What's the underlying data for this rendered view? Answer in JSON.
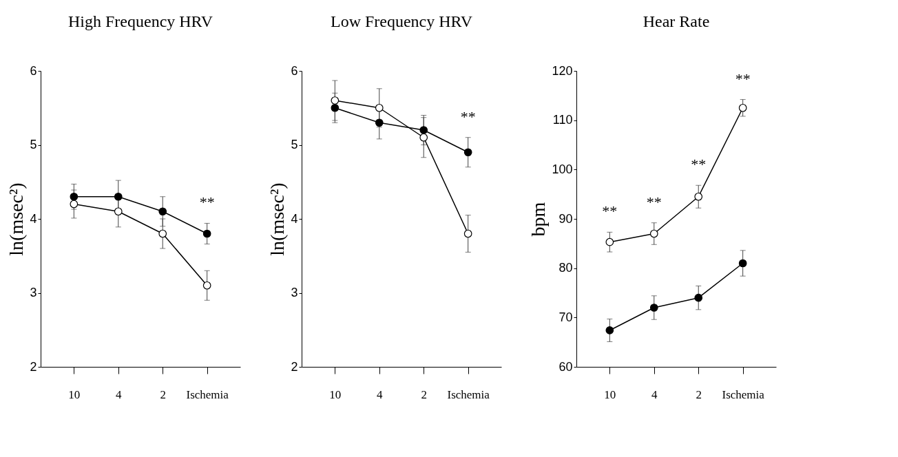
{
  "chart_data": [
    {
      "type": "line",
      "title": "High Frequency HRV",
      "ylabel": "ln(msec²)",
      "categories": [
        "10",
        "4",
        "2",
        "Ischemia"
      ],
      "ylim": [
        2,
        6
      ],
      "yticks": [
        2,
        3,
        4,
        5,
        6
      ],
      "grid": false,
      "marker": "circle",
      "series": [
        {
          "color": "#000000",
          "values": [
            4.3,
            4.3,
            4.1,
            3.8
          ],
          "errors": [
            0.17,
            0.22,
            0.2,
            0.14
          ]
        },
        {
          "color": "#ffffff",
          "values": [
            4.2,
            4.1,
            3.8,
            3.1
          ],
          "errors": [
            0.19,
            0.21,
            0.2,
            0.2
          ]
        }
      ],
      "annotations": [
        "**"
      ]
    },
    {
      "type": "line",
      "title": "Low Frequency HRV",
      "ylabel": "ln(msec²)",
      "categories": [
        "10",
        "4",
        "2",
        "Ischemia"
      ],
      "ylim": [
        2,
        6
      ],
      "yticks": [
        2,
        3,
        4,
        5,
        6
      ],
      "grid": false,
      "marker": "circle",
      "series": [
        {
          "color": "#000000",
          "values": [
            5.5,
            5.3,
            5.2,
            4.9
          ],
          "errors": [
            0.2,
            0.22,
            0.2,
            0.2
          ]
        },
        {
          "color": "#ffffff",
          "values": [
            5.6,
            5.5,
            5.1,
            3.8
          ],
          "errors": [
            0.27,
            0.26,
            0.27,
            0.25
          ]
        }
      ],
      "annotations": [
        "**"
      ]
    },
    {
      "type": "line",
      "title": "Hear Rate",
      "ylabel": "bpm",
      "categories": [
        "10",
        "4",
        "2",
        "Ischemia"
      ],
      "ylim": [
        60,
        120
      ],
      "yticks": [
        60,
        70,
        80,
        90,
        100,
        110,
        120
      ],
      "grid": false,
      "marker": "circle",
      "series": [
        {
          "color": "#000000",
          "values": [
            67.4,
            72,
            74,
            81
          ],
          "errors": [
            2.3,
            2.4,
            2.4,
            2.6
          ]
        },
        {
          "color": "#ffffff",
          "values": [
            85.3,
            87,
            94.5,
            112.5
          ],
          "errors": [
            2,
            2.2,
            2.3,
            1.7
          ]
        }
      ],
      "annotations": [
        "**",
        "**",
        "**",
        "**"
      ]
    }
  ]
}
